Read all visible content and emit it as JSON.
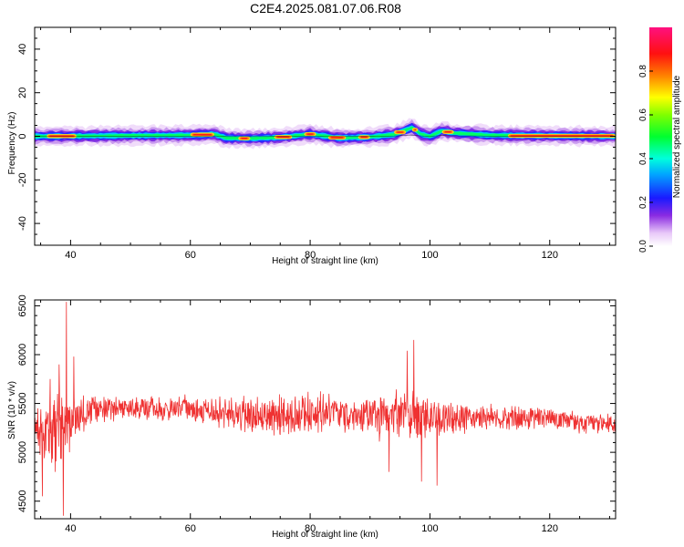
{
  "figure_title": "C2E4.2025.081.07.06.R08",
  "chart_data": [
    {
      "type": "heatmap",
      "xlabel": "Height of straight line (km)",
      "ylabel": "Frequency (Hz)",
      "xlim": [
        34,
        131
      ],
      "ylim": [
        -50,
        50
      ],
      "xticks": [
        40,
        60,
        80,
        100,
        120
      ],
      "yticks": [
        40,
        20,
        0,
        -20,
        -40
      ],
      "grid": false,
      "colorbar": {
        "label": "Normalized spectral amplitude",
        "range": [
          0,
          1
        ],
        "ticks": [
          "0.0",
          "0.2",
          "0.4",
          "0.6",
          "0.8"
        ],
        "colormap": "hsv-rainbow (white-violet-blue-cyan-green-yellow-red-magenta)"
      },
      "band": {
        "center_hz": [
          [
            34,
            0
          ],
          [
            60,
            0.5
          ],
          [
            64,
            1
          ],
          [
            66,
            -0.8
          ],
          [
            70,
            -1
          ],
          [
            75,
            -0.5
          ],
          [
            80,
            1
          ],
          [
            85,
            -0.8
          ],
          [
            90,
            -0.3
          ],
          [
            94,
            0.8
          ],
          [
            97,
            4
          ],
          [
            98.5,
            1
          ],
          [
            100,
            0
          ],
          [
            102,
            2.5
          ],
          [
            104,
            1.5
          ],
          [
            110,
            0.5
          ],
          [
            131,
            0
          ]
        ],
        "peak_segments_km": [
          [
            36,
            41
          ],
          [
            60,
            64
          ],
          [
            68,
            70
          ],
          [
            74,
            77
          ],
          [
            79,
            81
          ],
          [
            83,
            86
          ],
          [
            88,
            90
          ],
          [
            94,
            96
          ],
          [
            97,
            98
          ],
          [
            102,
            104
          ],
          [
            113,
            131
          ]
        ]
      }
    },
    {
      "type": "line",
      "xlabel": "Height of straight line (km)",
      "ylabel": "SNR (10 * v/v)",
      "xlim": [
        34,
        131
      ],
      "ylim": [
        4320,
        6560
      ],
      "xticks": [
        40,
        60,
        80,
        100,
        120
      ],
      "yticks": [
        4500,
        5000,
        5500,
        6000,
        6500
      ],
      "grid": false,
      "series": [
        {
          "color": "#ef3131",
          "baseline": [
            [
              34,
              5200
            ],
            [
              37,
              5250
            ],
            [
              40,
              5350
            ],
            [
              45,
              5450
            ],
            [
              60,
              5450
            ],
            [
              70,
              5380
            ],
            [
              80,
              5400
            ],
            [
              90,
              5350
            ],
            [
              95,
              5400
            ],
            [
              100,
              5350
            ],
            [
              110,
              5350
            ],
            [
              120,
              5350
            ],
            [
              125,
              5300
            ],
            [
              131,
              5300
            ]
          ],
          "noise_amplitude": [
            [
              34,
              350
            ],
            [
              38,
              500
            ],
            [
              41,
              220
            ],
            [
              50,
              120
            ],
            [
              60,
              150
            ],
            [
              68,
              200
            ],
            [
              80,
              250
            ],
            [
              88,
              200
            ],
            [
              93,
              300
            ],
            [
              97,
              300
            ],
            [
              101,
              200
            ],
            [
              110,
              150
            ],
            [
              120,
              120
            ],
            [
              131,
              110
            ]
          ],
          "extremes": [
            [
              34.5,
              5450
            ],
            [
              35.3,
              4550
            ],
            [
              36.6,
              5750
            ],
            [
              37.4,
              4800
            ],
            [
              38.1,
              5900
            ],
            [
              38.8,
              4350
            ],
            [
              39.3,
              6540
            ],
            [
              39.8,
              5000
            ],
            [
              40.5,
              5980
            ],
            [
              93.2,
              4800
            ],
            [
              96.2,
              6040
            ],
            [
              97.3,
              6150
            ],
            [
              98.6,
              4700
            ],
            [
              101.2,
              4660
            ]
          ]
        }
      ]
    }
  ]
}
